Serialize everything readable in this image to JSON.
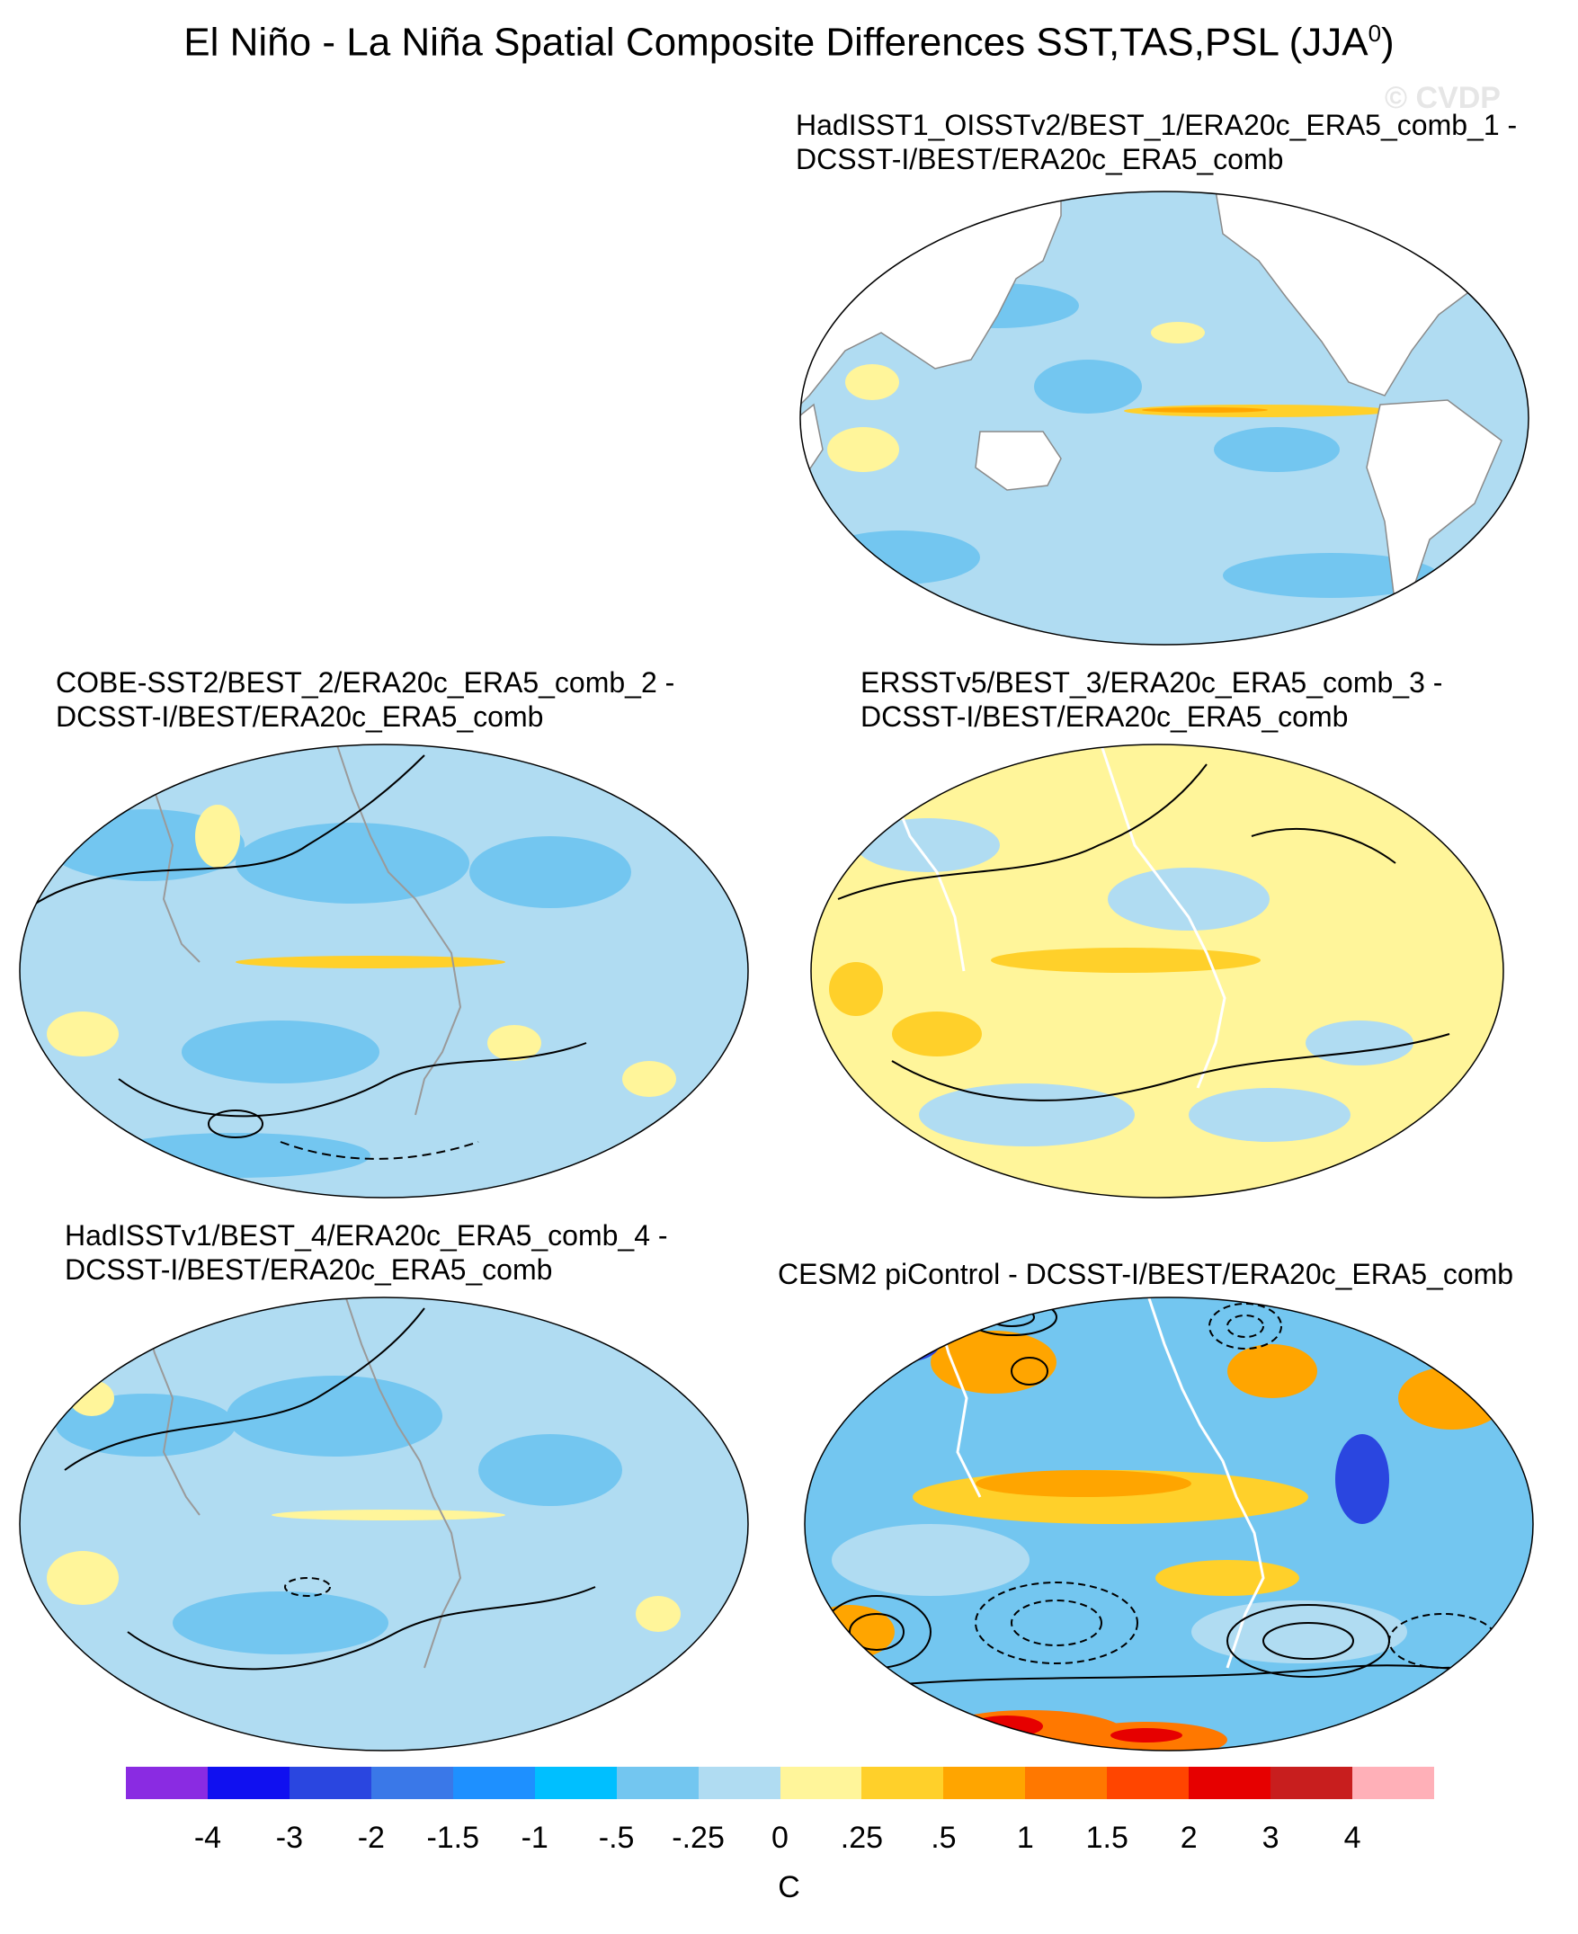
{
  "title": {
    "main": "El Niño - La Niña Spatial Composite Differences SST,TAS,PSL (JJA",
    "superscript": "0",
    "closing": ")"
  },
  "watermark": "© CVDP",
  "panels": [
    {
      "id": "p1",
      "title_line1": "HadISST1_OISSTv2/BEST_1/ERA20c_ERA5_comb_1 -",
      "title_line2": "DCSST-I/BEST/ERA20c_ERA5_comb"
    },
    {
      "id": "p2",
      "title_line1": "COBE-SST2/BEST_2/ERA20c_ERA5_comb_2 -",
      "title_line2": "DCSST-I/BEST/ERA20c_ERA5_comb"
    },
    {
      "id": "p3",
      "title_line1": "ERSSTv5/BEST_3/ERA20c_ERA5_comb_3 -",
      "title_line2": "DCSST-I/BEST/ERA20c_ERA5_comb"
    },
    {
      "id": "p4",
      "title_line1": "HadISSTv1/BEST_4/ERA20c_ERA5_comb_4 -",
      "title_line2": "DCSST-I/BEST/ERA20c_ERA5_comb"
    },
    {
      "id": "p5",
      "title_line1": "CESM2 piControl - DCSST-I/BEST/ERA20c_ERA5_comb",
      "title_line2": ""
    }
  ],
  "colorbar": {
    "units": "C",
    "colors": [
      "#8a2be2",
      "#1010f0",
      "#2a46e0",
      "#3a78e8",
      "#1e90ff",
      "#00bfff",
      "#73c6f0",
      "#b0dcf2",
      "#fff59a",
      "#ffd02a",
      "#ffa500",
      "#ff7800",
      "#ff4500",
      "#e60000",
      "#c81e1e",
      "#ffb0b8"
    ],
    "labels": [
      "-4",
      "-3",
      "-2",
      "-1.5",
      "-1",
      "-.5",
      "-.25",
      "0",
      ".25",
      ".5",
      "1",
      "1.5",
      "2",
      "3",
      "4"
    ]
  }
}
